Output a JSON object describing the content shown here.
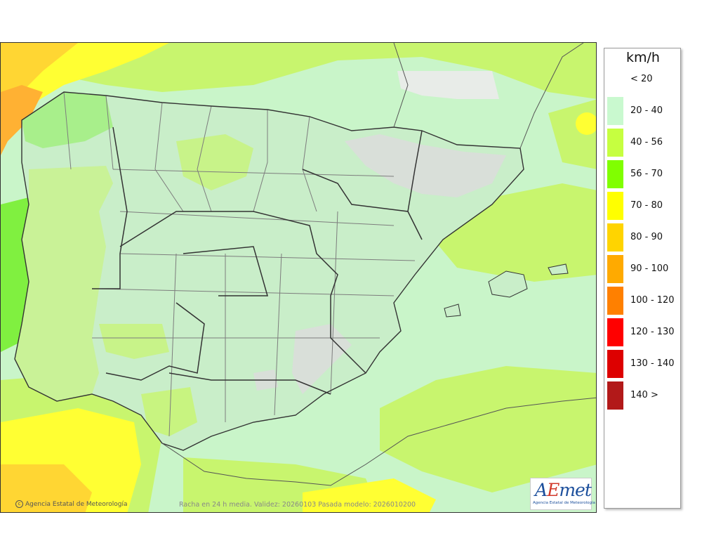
{
  "map": {
    "colors": {
      "sea_base": "#c9f5c9",
      "band_20_40": "#ccf7cc",
      "band_40_56": "#c8f56e",
      "band_56_70": "#80f040",
      "band_70_80": "#ffff33",
      "band_80_90": "#ffd633",
      "band_90_100": "#ffb133",
      "land_shade": "#c9eec9",
      "mountain": "#dcdcdc",
      "border": "#333333",
      "province_line": "#7d7d7d"
    }
  },
  "legend": {
    "unit": "km/h",
    "items": [
      {
        "label": "< 20",
        "color": "#ffffff"
      },
      {
        "label": "20 - 40",
        "color": "#c9f9cf"
      },
      {
        "label": "40 - 56",
        "color": "#c6ff40"
      },
      {
        "label": "56 - 70",
        "color": "#80ff00"
      },
      {
        "label": "70 - 80",
        "color": "#ffff00"
      },
      {
        "label": "80 - 90",
        "color": "#ffd400"
      },
      {
        "label": "90 - 100",
        "color": "#ffaa00"
      },
      {
        "label": "100 - 120",
        "color": "#ff8000"
      },
      {
        "label": "120 - 130",
        "color": "#ff0000"
      },
      {
        "label": "130 - 140",
        "color": "#dd0000"
      },
      {
        "label": "140 >",
        "color": "#b21919"
      }
    ]
  },
  "footer": {
    "credit": "Agencia Estatal de Meteorología",
    "validity": "Racha en 24 h media. Validez: 20260103 Pasada modelo: 2026010200"
  },
  "logo": {
    "text": "AEmet",
    "subtitle": "Agencia Estatal de Meteorología"
  }
}
